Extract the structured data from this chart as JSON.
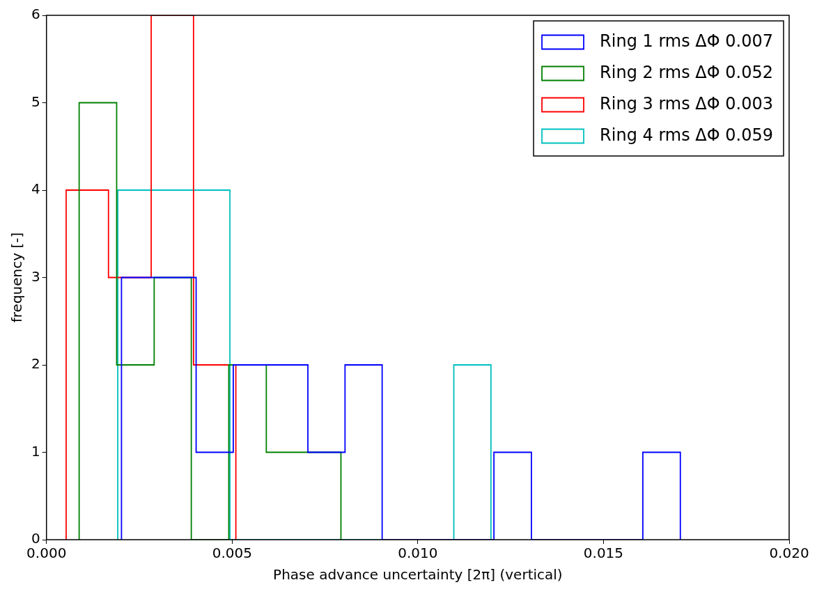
{
  "chart_data": {
    "type": "step",
    "xlabel": "Phase advance uncertainty [2π] (vertical)",
    "ylabel": "frequency [-]",
    "xlim": [
      0,
      0.02
    ],
    "ylim": [
      0,
      6
    ],
    "xticks": [
      {
        "value": 0,
        "label": "0.000"
      },
      {
        "value": 0.005,
        "label": "0.005"
      },
      {
        "value": 0.01,
        "label": "0.010"
      },
      {
        "value": 0.015,
        "label": "0.015"
      },
      {
        "value": 0.02,
        "label": "0.020"
      }
    ],
    "yticks": [
      0,
      1,
      2,
      3,
      4,
      5,
      6
    ],
    "grid": false,
    "legend": "top right",
    "marker": "none",
    "series": [
      {
        "name": "Ring 1 rms ΔΦ 0.007",
        "color": "#0000ff",
        "x": [
          0.00202,
          0.00202,
          0.00302,
          0.00403,
          0.00503,
          0.00603,
          0.00704,
          0.00804,
          0.00904,
          0.01205,
          0.01306,
          0.01606,
          0.01707
        ],
        "values": [
          0,
          3,
          3,
          1,
          2,
          2,
          1,
          2,
          0,
          1,
          0,
          1,
          0
        ]
      },
      {
        "name": "Ring 2 rms ΔΦ 0.052",
        "color": "#008000",
        "x": [
          0.00088,
          0.00088,
          0.00189,
          0.0029,
          0.0039,
          0.00491,
          0.00592,
          0.00692,
          0.00793
        ],
        "values": [
          0,
          5,
          2,
          3,
          0,
          2,
          1,
          1,
          0
        ]
      },
      {
        "name": "Ring 3 rms ΔΦ 0.003",
        "color": "#ff0000",
        "x": [
          0.00053,
          0.00053,
          0.00167,
          0.00282,
          0.00396,
          0.0051
        ],
        "values": [
          0,
          4,
          3,
          6,
          2,
          0
        ]
      },
      {
        "name": "Ring 4 rms ΔΦ 0.059",
        "color": "#00bfbf",
        "x": [
          0.00192,
          0.00192,
          0.00293,
          0.00393,
          0.00494,
          0.01097,
          0.01197
        ],
        "values": [
          0,
          4,
          4,
          4,
          0,
          2,
          0
        ]
      }
    ]
  }
}
